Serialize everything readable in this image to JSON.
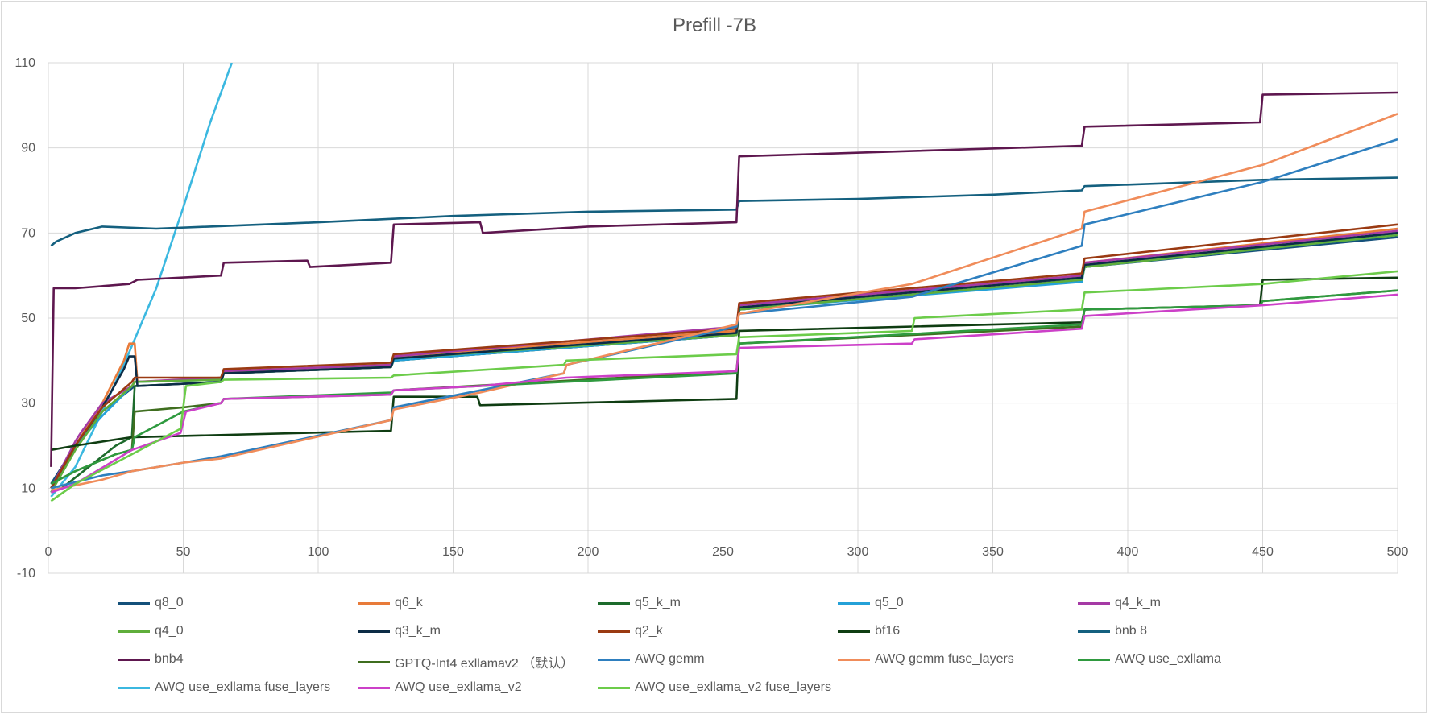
{
  "title": "Prefill -7B",
  "colors": {
    "q8_0": "#14507a",
    "q6_k": "#e87b3a",
    "q5_k_m": "#1d6b2c",
    "q5_0": "#24a1d8",
    "q4_k_m": "#a53aa5",
    "q4_0": "#5fae3b",
    "q3_k_m": "#0c2c46",
    "q2_k": "#9a3a12",
    "bf16": "#0f3d12",
    "bnb 8": "#14607f",
    "bnb4": "#5e174f",
    "GPTQ-Int4 exllamav2 (default)": "#3f6e1f",
    "AWQ gemm": "#2e7fbf",
    "AWQ gemm fuse_layers": "#f08c5a",
    "AWQ use_exllama": "#2f9a3f",
    "AWQ use_exllama fuse_layers": "#3bb8e0",
    "AWQ use_exllama_v2": "#cc40c8",
    "AWQ use_exllama_v2 fuse_layers": "#6ccc4a"
  },
  "chart_data": {
    "type": "line",
    "title": "Prefill -7B",
    "xlabel": "",
    "ylabel": "",
    "xlim": [
      0,
      500
    ],
    "ylim": [
      -10,
      110
    ],
    "x_ticks": [
      0,
      50,
      100,
      150,
      200,
      250,
      300,
      350,
      400,
      450,
      500
    ],
    "y_ticks": [
      -10,
      10,
      30,
      50,
      70,
      90,
      110
    ],
    "y_tick_labels": [
      "-10",
      "10",
      "30",
      "50",
      "70",
      "90",
      "110"
    ],
    "grid": true,
    "legend_position": "bottom",
    "series": [
      {
        "name": "q8_0",
        "points": [
          [
            1,
            11
          ],
          [
            10,
            20
          ],
          [
            20,
            28
          ],
          [
            30,
            33
          ],
          [
            32,
            34
          ],
          [
            64,
            35
          ],
          [
            65,
            37
          ],
          [
            127,
            38.5
          ],
          [
            128,
            40
          ],
          [
            255,
            46
          ],
          [
            256,
            52
          ],
          [
            383,
            59
          ],
          [
            384,
            62
          ],
          [
            500,
            69
          ]
        ]
      },
      {
        "name": "q6_k",
        "points": [
          [
            1,
            10
          ],
          [
            10,
            20
          ],
          [
            20,
            30
          ],
          [
            28,
            40
          ],
          [
            30,
            44
          ],
          [
            32,
            44
          ],
          [
            33,
            35
          ],
          [
            64,
            36
          ],
          [
            65,
            37.5
          ],
          [
            127,
            39
          ],
          [
            128,
            41
          ],
          [
            255,
            47
          ],
          [
            256,
            53
          ],
          [
            383,
            60
          ],
          [
            384,
            63
          ],
          [
            500,
            71
          ]
        ]
      },
      {
        "name": "q5_k_m",
        "points": [
          [
            1,
            9
          ],
          [
            5,
            10
          ],
          [
            15,
            15
          ],
          [
            25,
            20
          ],
          [
            31,
            22
          ],
          [
            32,
            34
          ],
          [
            64,
            35
          ],
          [
            65,
            37
          ],
          [
            127,
            38.5
          ],
          [
            128,
            40
          ],
          [
            255,
            46
          ],
          [
            256,
            52
          ],
          [
            383,
            59
          ],
          [
            384,
            62
          ],
          [
            500,
            70
          ]
        ]
      },
      {
        "name": "q5_0",
        "points": [
          [
            1,
            9
          ],
          [
            10,
            20
          ],
          [
            20,
            27
          ],
          [
            31,
            34
          ],
          [
            32,
            35
          ],
          [
            64,
            35.5
          ],
          [
            65,
            37
          ],
          [
            127,
            38.5
          ],
          [
            128,
            40
          ],
          [
            255,
            46
          ],
          [
            256,
            52
          ],
          [
            383,
            58.5
          ],
          [
            384,
            62
          ],
          [
            500,
            69.5
          ]
        ]
      },
      {
        "name": "q4_k_m",
        "points": [
          [
            1,
            10
          ],
          [
            10,
            21
          ],
          [
            12,
            23
          ],
          [
            20,
            30
          ],
          [
            31,
            34
          ],
          [
            32,
            35
          ],
          [
            64,
            36
          ],
          [
            65,
            37.5
          ],
          [
            127,
            39
          ],
          [
            128,
            41
          ],
          [
            255,
            48
          ],
          [
            256,
            53
          ],
          [
            383,
            60
          ],
          [
            384,
            63
          ],
          [
            500,
            70.5
          ]
        ]
      },
      {
        "name": "q4_0",
        "points": [
          [
            1,
            9
          ],
          [
            10,
            19
          ],
          [
            20,
            28
          ],
          [
            31,
            34
          ],
          [
            32,
            35
          ],
          [
            64,
            35.5
          ],
          [
            65,
            37
          ],
          [
            127,
            38.5
          ],
          [
            128,
            40.5
          ],
          [
            255,
            46
          ],
          [
            256,
            52
          ],
          [
            383,
            59
          ],
          [
            384,
            62
          ],
          [
            500,
            69.5
          ]
        ]
      },
      {
        "name": "q3_k_m",
        "points": [
          [
            1,
            10
          ],
          [
            10,
            20
          ],
          [
            20,
            29
          ],
          [
            28,
            38
          ],
          [
            30,
            41
          ],
          [
            32,
            41
          ],
          [
            33,
            34
          ],
          [
            64,
            35
          ],
          [
            65,
            37
          ],
          [
            127,
            38.5
          ],
          [
            128,
            40.5
          ],
          [
            255,
            46.5
          ],
          [
            256,
            52.5
          ],
          [
            383,
            59.5
          ],
          [
            384,
            62.5
          ],
          [
            500,
            70
          ]
        ]
      },
      {
        "name": "q2_k",
        "points": [
          [
            1,
            10
          ],
          [
            10,
            20
          ],
          [
            20,
            29
          ],
          [
            31,
            35
          ],
          [
            32,
            36
          ],
          [
            64,
            36
          ],
          [
            65,
            38
          ],
          [
            127,
            39.5
          ],
          [
            128,
            41.5
          ],
          [
            255,
            47.5
          ],
          [
            256,
            53.5
          ],
          [
            383,
            60.5
          ],
          [
            384,
            64
          ],
          [
            500,
            72
          ]
        ]
      },
      {
        "name": "bf16",
        "points": [
          [
            1,
            19
          ],
          [
            10,
            20
          ],
          [
            31,
            22
          ],
          [
            32,
            22
          ],
          [
            127,
            23.5
          ],
          [
            128,
            31.5
          ],
          [
            159,
            31.5
          ],
          [
            160,
            29.5
          ],
          [
            255,
            31
          ],
          [
            256,
            47
          ],
          [
            383,
            49
          ],
          [
            384,
            52
          ],
          [
            449,
            53
          ],
          [
            450,
            59
          ],
          [
            500,
            59.5
          ]
        ]
      },
      {
        "name": "bnb 8",
        "points": [
          [
            1,
            67
          ],
          [
            3,
            68
          ],
          [
            10,
            70
          ],
          [
            20,
            71.5
          ],
          [
            40,
            71
          ],
          [
            100,
            72.5
          ],
          [
            150,
            74
          ],
          [
            200,
            75
          ],
          [
            255,
            75.5
          ],
          [
            256,
            77.5
          ],
          [
            300,
            78
          ],
          [
            350,
            79
          ],
          [
            383,
            80
          ],
          [
            384,
            81
          ],
          [
            450,
            82.5
          ],
          [
            500,
            83
          ]
        ]
      },
      {
        "name": "bnb4",
        "points": [
          [
            1,
            15
          ],
          [
            2,
            57
          ],
          [
            10,
            57
          ],
          [
            30,
            58
          ],
          [
            33,
            59
          ],
          [
            64,
            60
          ],
          [
            65,
            63
          ],
          [
            96,
            63.5
          ],
          [
            97,
            62
          ],
          [
            127,
            63
          ],
          [
            128,
            72
          ],
          [
            160,
            72.5
          ],
          [
            161,
            70
          ],
          [
            200,
            71.5
          ],
          [
            255,
            72.5
          ],
          [
            256,
            88
          ],
          [
            383,
            90.5
          ],
          [
            384,
            95
          ],
          [
            449,
            96
          ],
          [
            450,
            102.5
          ],
          [
            500,
            103
          ]
        ]
      },
      {
        "name": "GPTQ-Int4 exllamav2 (default)",
        "points": [
          [
            1,
            11
          ],
          [
            10,
            14
          ],
          [
            25,
            18
          ],
          [
            31,
            19
          ],
          [
            32,
            28
          ],
          [
            50,
            29
          ],
          [
            64,
            30
          ],
          [
            65,
            31
          ],
          [
            127,
            32
          ],
          [
            128,
            33
          ],
          [
            255,
            37.5
          ],
          [
            256,
            44
          ],
          [
            383,
            48
          ],
          [
            384,
            52
          ],
          [
            449,
            53
          ],
          [
            450,
            54
          ],
          [
            500,
            56.5
          ]
        ]
      },
      {
        "name": "AWQ gemm",
        "points": [
          [
            1,
            10
          ],
          [
            20,
            13
          ],
          [
            31,
            14
          ],
          [
            50,
            16
          ],
          [
            64,
            17.5
          ],
          [
            127,
            26
          ],
          [
            128,
            29
          ],
          [
            160,
            33
          ],
          [
            191,
            37
          ],
          [
            192,
            39
          ],
          [
            255,
            48
          ],
          [
            256,
            51
          ],
          [
            320,
            55
          ],
          [
            383,
            67
          ],
          [
            384,
            72
          ],
          [
            450,
            82
          ],
          [
            500,
            92
          ]
        ]
      },
      {
        "name": "AWQ gemm fuse_layers",
        "points": [
          [
            1,
            9.5
          ],
          [
            20,
            12
          ],
          [
            31,
            14
          ],
          [
            50,
            16
          ],
          [
            64,
            17
          ],
          [
            127,
            26
          ],
          [
            128,
            28.5
          ],
          [
            160,
            32.5
          ],
          [
            191,
            37
          ],
          [
            192,
            39
          ],
          [
            255,
            48.5
          ],
          [
            256,
            51
          ],
          [
            320,
            58
          ],
          [
            383,
            71
          ],
          [
            384,
            75
          ],
          [
            450,
            86
          ],
          [
            500,
            98
          ]
        ]
      },
      {
        "name": "AWQ use_exllama",
        "points": [
          [
            1,
            11
          ],
          [
            10,
            14
          ],
          [
            25,
            18
          ],
          [
            31,
            19
          ],
          [
            32,
            22
          ],
          [
            50,
            28
          ],
          [
            64,
            30
          ],
          [
            65,
            31
          ],
          [
            127,
            32.5
          ],
          [
            128,
            33
          ],
          [
            255,
            37
          ],
          [
            256,
            44
          ],
          [
            383,
            48.5
          ],
          [
            384,
            52
          ],
          [
            449,
            53
          ],
          [
            450,
            54
          ],
          [
            500,
            56.5
          ]
        ]
      },
      {
        "name": "AWQ use_exllama fuse_layers",
        "points": [
          [
            1,
            8
          ],
          [
            10,
            15
          ],
          [
            20,
            28
          ],
          [
            30,
            42
          ],
          [
            40,
            57
          ],
          [
            50,
            76
          ],
          [
            60,
            96
          ],
          [
            68,
            110
          ]
        ]
      },
      {
        "name": "AWQ use_exllama_v2",
        "points": [
          [
            1,
            9
          ],
          [
            10,
            11
          ],
          [
            31,
            19
          ],
          [
            49,
            23
          ],
          [
            51,
            28
          ],
          [
            64,
            30
          ],
          [
            65,
            31
          ],
          [
            127,
            32
          ],
          [
            128,
            33
          ],
          [
            160,
            34
          ],
          [
            192,
            36
          ],
          [
            255,
            37.5
          ],
          [
            256,
            43
          ],
          [
            320,
            44
          ],
          [
            321,
            45
          ],
          [
            383,
            47.5
          ],
          [
            384,
            50.5
          ],
          [
            450,
            53
          ],
          [
            500,
            55.5
          ]
        ]
      },
      {
        "name": "AWQ use_exllama_v2 fuse_layers",
        "points": [
          [
            1,
            7
          ],
          [
            10,
            11
          ],
          [
            31,
            18
          ],
          [
            49,
            24
          ],
          [
            51,
            34
          ],
          [
            64,
            35
          ],
          [
            65,
            35.5
          ],
          [
            127,
            36
          ],
          [
            128,
            36.5
          ],
          [
            191,
            39
          ],
          [
            192,
            40
          ],
          [
            255,
            41.5
          ],
          [
            256,
            45.5
          ],
          [
            320,
            47
          ],
          [
            321,
            50
          ],
          [
            383,
            52
          ],
          [
            384,
            56
          ],
          [
            450,
            58
          ],
          [
            500,
            61
          ]
        ]
      }
    ],
    "legend_labels": [
      "q8_0",
      "q6_k",
      "q5_k_m",
      "q5_0",
      "q4_k_m",
      "q4_0",
      "q3_k_m",
      "q2_k",
      "bf16",
      "bnb 8",
      "bnb4",
      "GPTQ-Int4 exllamav2 （默认）",
      "AWQ gemm",
      "AWQ gemm fuse_layers",
      "AWQ use_exllama",
      "AWQ use_exllama fuse_layers",
      "AWQ use_exllama_v2",
      "AWQ use_exllama_v2 fuse_layers"
    ]
  }
}
